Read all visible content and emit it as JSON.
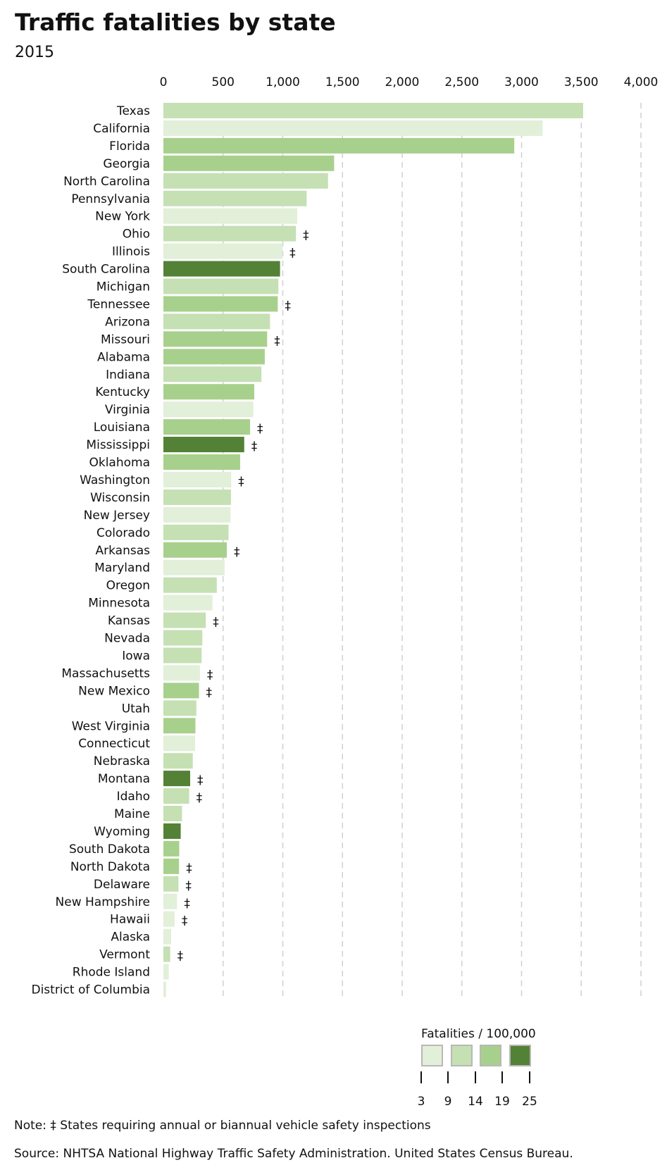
{
  "title": "Traffic fatalities by state",
  "subtitle": "2015",
  "note": "Note: ‡ States requiring annual or biannual vehicle safety inspections",
  "source": "Source: NHTSA National Highway Traffic Safety Administration. United States Census Bureau.",
  "chart_data": {
    "type": "bar",
    "orientation": "horizontal",
    "title": "Traffic fatalities by state",
    "subtitle": "2015",
    "xlim": [
      0,
      4000
    ],
    "xticks": [
      0,
      500,
      1000,
      1500,
      2000,
      2500,
      3000,
      3500,
      4000
    ],
    "xtick_labels": [
      "0",
      "500",
      "1,000",
      "1,500",
      "2,000",
      "2,500",
      "3,000",
      "3,500",
      "4,000"
    ],
    "axis_position": "top",
    "grid": "vertical dashed",
    "inspection_marker": "‡",
    "legend": {
      "title": "Fatalities / 100,000",
      "breaks": [
        "3",
        "9",
        "14",
        "19",
        "25"
      ],
      "colors": [
        "#e2efd9",
        "#c5e0b3",
        "#a8d08d",
        "#538135"
      ],
      "placement": "bottom-right"
    },
    "categories": [
      "Texas",
      "California",
      "Florida",
      "Georgia",
      "North Carolina",
      "Pennsylvania",
      "New York",
      "Ohio",
      "Illinois",
      "South Carolina",
      "Michigan",
      "Tennessee",
      "Arizona",
      "Missouri",
      "Alabama",
      "Indiana",
      "Kentucky",
      "Virginia",
      "Louisiana",
      "Mississippi",
      "Oklahoma",
      "Washington",
      "Wisconsin",
      "New Jersey",
      "Colorado",
      "Arkansas",
      "Maryland",
      "Oregon",
      "Minnesota",
      "Kansas",
      "Nevada",
      "Iowa",
      "Massachusetts",
      "New Mexico",
      "Utah",
      "West Virginia",
      "Connecticut",
      "Nebraska",
      "Montana",
      "Idaho",
      "Maine",
      "Wyoming",
      "South Dakota",
      "North Dakota",
      "Delaware",
      "New Hampshire",
      "Hawaii",
      "Alaska",
      "Vermont",
      "Rhode Island",
      "District of Columbia"
    ],
    "values": [
      3516,
      3176,
      2939,
      1430,
      1379,
      1200,
      1121,
      1110,
      998,
      977,
      963,
      958,
      893,
      869,
      849,
      821,
      761,
      753,
      726,
      677,
      643,
      568,
      566,
      562,
      546,
      531,
      513,
      447,
      411,
      355,
      326,
      320,
      306,
      298,
      276,
      268,
      266,
      246,
      224,
      216,
      156,
      145,
      133,
      131,
      126,
      114,
      94,
      65,
      57,
      45,
      23
    ],
    "rate_class": [
      2,
      1,
      3,
      3,
      2,
      2,
      1,
      2,
      1,
      4,
      2,
      3,
      2,
      3,
      3,
      2,
      3,
      1,
      3,
      4,
      3,
      1,
      2,
      1,
      2,
      3,
      1,
      2,
      1,
      2,
      2,
      2,
      1,
      3,
      2,
      3,
      1,
      2,
      4,
      2,
      2,
      4,
      3,
      3,
      2,
      1,
      1,
      1,
      2,
      1,
      1
    ],
    "inspection": [
      false,
      false,
      false,
      false,
      false,
      false,
      false,
      true,
      true,
      false,
      false,
      true,
      false,
      true,
      false,
      false,
      false,
      false,
      true,
      true,
      false,
      true,
      false,
      false,
      false,
      true,
      false,
      false,
      false,
      true,
      false,
      false,
      true,
      true,
      false,
      false,
      false,
      false,
      true,
      true,
      false,
      false,
      false,
      true,
      true,
      true,
      true,
      false,
      true,
      false,
      false
    ]
  }
}
